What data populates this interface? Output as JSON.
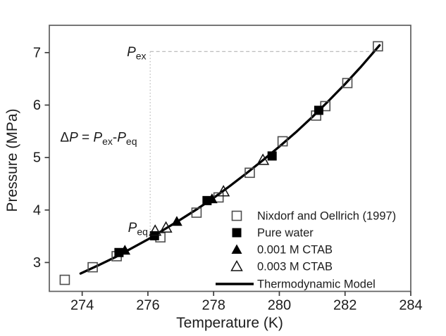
{
  "figure": {
    "background": "#ffffff",
    "frame_color": "#5f5f5f",
    "data_color": "#000000",
    "guide_color": "#b5b5b5"
  },
  "chart_data": {
    "type": "scatter",
    "title": "",
    "xlabel": "Temperature (K)",
    "ylabel": "Pressure (MPa)",
    "xlim": [
      273.0,
      284.0
    ],
    "ylim": [
      2.45,
      7.52
    ],
    "xticks": [
      274,
      276,
      278,
      280,
      282,
      284
    ],
    "yticks": [
      3,
      4,
      5,
      6,
      7
    ],
    "grid": false,
    "legend_position": "inside-lower-right",
    "series": [
      {
        "name": "Nixdorf and Oellrich (1997)",
        "marker": "open-square",
        "color": "#4d4d4d",
        "points": [
          [
            273.47,
            2.67
          ],
          [
            274.32,
            2.91
          ],
          [
            275.05,
            3.12
          ],
          [
            276.38,
            3.48
          ],
          [
            277.48,
            3.95
          ],
          [
            278.15,
            4.24
          ],
          [
            279.1,
            4.71
          ],
          [
            280.1,
            5.31
          ],
          [
            281.12,
            5.8
          ],
          [
            281.4,
            5.98
          ],
          [
            282.07,
            6.42
          ],
          [
            283.0,
            7.12
          ]
        ]
      },
      {
        "name": "Pure water",
        "marker": "filled-square",
        "color": "#000000",
        "points": [
          [
            275.12,
            3.19
          ],
          [
            276.2,
            3.51
          ],
          [
            277.8,
            4.18
          ],
          [
            279.78,
            5.03
          ],
          [
            281.2,
            5.9
          ]
        ]
      },
      {
        "name": "0.001 M CTAB",
        "marker": "filled-triangle",
        "color": "#000000",
        "points": [
          [
            275.3,
            3.23
          ],
          [
            276.88,
            3.78
          ],
          [
            277.95,
            4.21
          ]
        ]
      },
      {
        "name": "0.003 M CTAB",
        "marker": "open-triangle",
        "color": "#111111",
        "points": [
          [
            276.22,
            3.6
          ],
          [
            276.55,
            3.66
          ],
          [
            278.3,
            4.35
          ],
          [
            279.5,
            4.95
          ]
        ]
      },
      {
        "name": "Thermodynamic Model",
        "marker": "line",
        "color": "#000000",
        "points": [
          [
            273.95,
            2.79
          ],
          [
            274.5,
            2.95
          ],
          [
            275.0,
            3.1
          ],
          [
            275.5,
            3.27
          ],
          [
            276.0,
            3.44
          ],
          [
            276.5,
            3.63
          ],
          [
            277.0,
            3.82
          ],
          [
            277.5,
            4.02
          ],
          [
            278.0,
            4.23
          ],
          [
            278.5,
            4.46
          ],
          [
            279.0,
            4.7
          ],
          [
            279.5,
            4.95
          ],
          [
            280.0,
            5.21
          ],
          [
            280.5,
            5.48
          ],
          [
            281.0,
            5.77
          ],
          [
            281.5,
            6.08
          ],
          [
            282.0,
            6.4
          ],
          [
            282.5,
            6.74
          ],
          [
            283.05,
            7.14
          ]
        ]
      }
    ],
    "annotations": {
      "guide_corner": {
        "t": 276.07,
        "p": 7.02
      },
      "guide_vline_bottom_p": 3.5,
      "guide_hline_right_t": 282.85,
      "p_ex_label": {
        "anchor": "end",
        "t": 275.95,
        "p": 6.93,
        "parts": [
          {
            "text": "P",
            "style": "italic"
          },
          {
            "text": "ex",
            "style": "sub"
          }
        ]
      },
      "p_eq_label": {
        "anchor": "end",
        "t": 276.0,
        "p": 3.58,
        "parts": [
          {
            "text": "P",
            "style": "italic"
          },
          {
            "text": "eq",
            "style": "sub"
          }
        ]
      },
      "delta_label": {
        "anchor": "start",
        "t": 273.33,
        "p": 5.3,
        "parts": [
          {
            "text": "Δ",
            "style": "normal"
          },
          {
            "text": "P",
            "style": "italic"
          },
          {
            "text": " =  ",
            "style": "normal"
          },
          {
            "text": "P",
            "style": "italic"
          },
          {
            "text": "ex",
            "style": "sub"
          },
          {
            "text": "-",
            "style": "normal"
          },
          {
            "text": "P",
            "style": "italic"
          },
          {
            "text": "eq",
            "style": "sub"
          }
        ]
      }
    }
  }
}
